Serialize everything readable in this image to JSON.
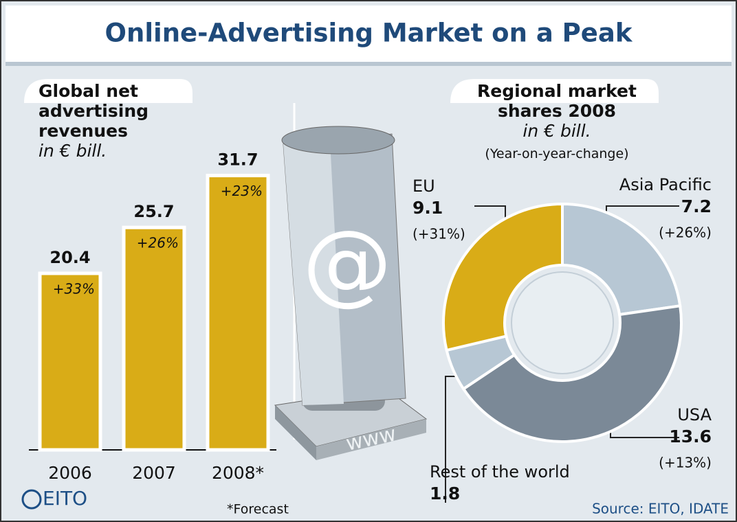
{
  "title": "Online-Advertising Market on a Peak",
  "footnote": "*Forecast",
  "source": "Source: EITO, IDATE",
  "logo": "EITO",
  "illustration": {
    "symbol": "@",
    "label": "www"
  },
  "chart_data": [
    {
      "type": "bar",
      "title": "Global net advertising revenues",
      "subtitle": "in € bill.",
      "categories": [
        "2006",
        "2007",
        "2008*"
      ],
      "values": [
        20.4,
        25.7,
        31.7
      ],
      "changes": [
        "+33%",
        "+26%",
        "+23%"
      ],
      "color": "#d9ac17"
    },
    {
      "type": "pie",
      "title": "Regional market shares 2008",
      "subtitle": "in € bill.",
      "note": "(Year-on-year-change)",
      "categories": [
        "Asia Pacific",
        "USA",
        "Rest of the world",
        "EU"
      ],
      "values": [
        7.2,
        13.6,
        1.8,
        9.1
      ],
      "changes": [
        "(+26%)",
        "(+13%)",
        null,
        "(+31%)"
      ],
      "colors": [
        "#b7c7d4",
        "#7b8997",
        "#b7c7d4",
        "#d9ac17"
      ]
    }
  ]
}
